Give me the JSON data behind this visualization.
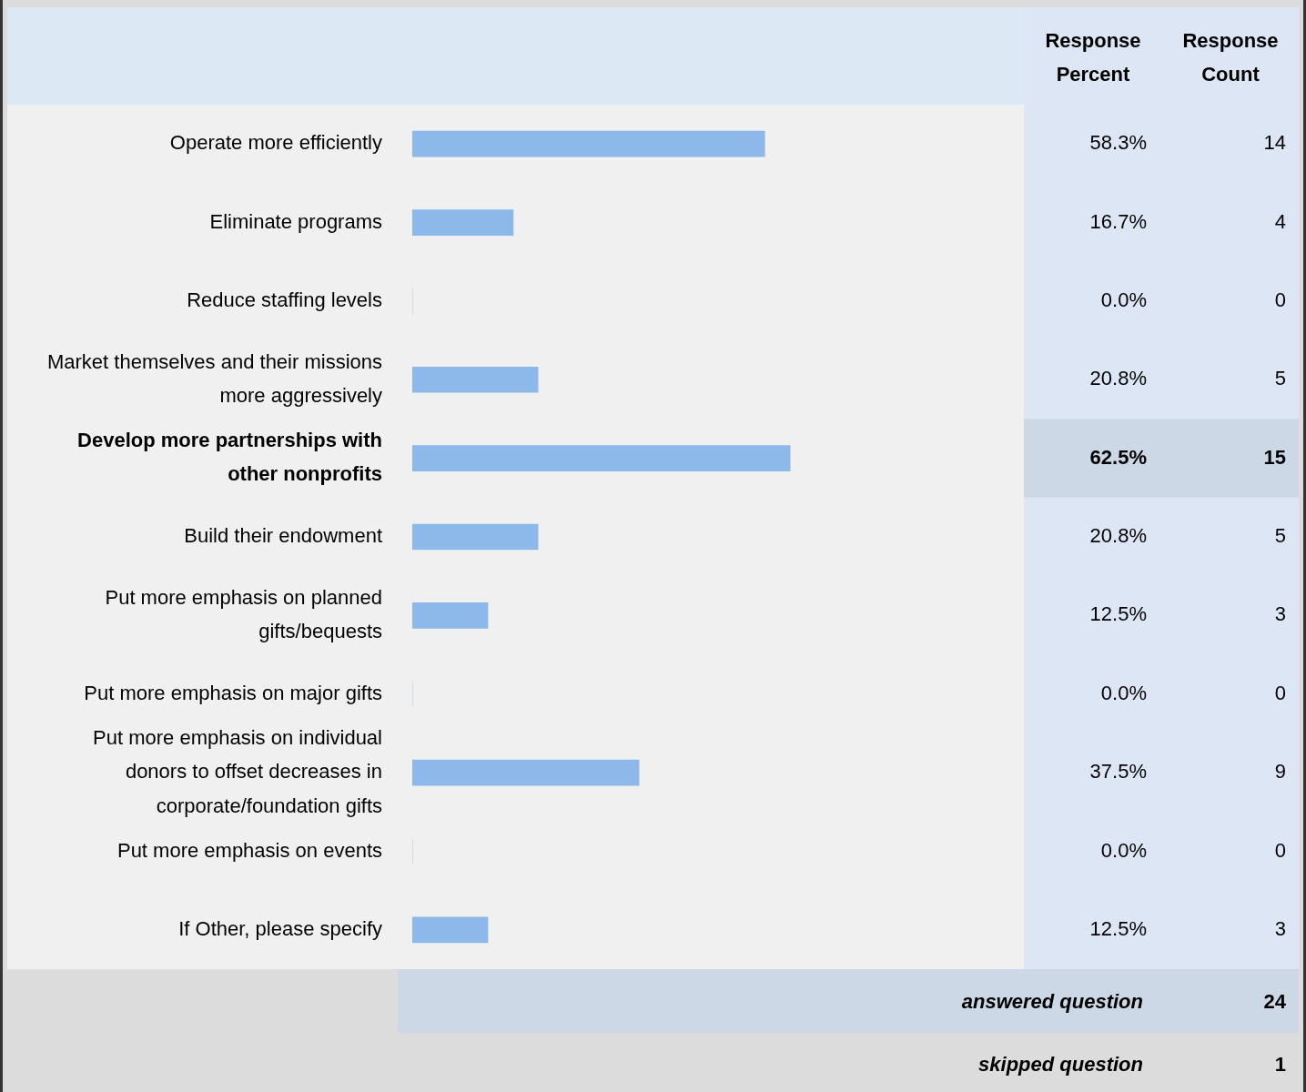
{
  "chart_data": {
    "type": "bar",
    "orientation": "horizontal",
    "categories": [
      "Operate more efficiently",
      "Eliminate programs",
      "Reduce staffing levels",
      "Market themselves and their missions more aggressively",
      "Develop more partnerships with other nonprofits",
      "Build their endowment",
      "Put more emphasis on planned gifts/bequests",
      "Put more emphasis on major gifts",
      "Put more emphasis on individual donors to offset decreases in corporate/foundation gifts",
      "Put more emphasis on events",
      "If Other, please specify"
    ],
    "values": [
      58.3,
      16.7,
      0,
      20.8,
      62.5,
      20.8,
      12.5,
      0,
      37.5,
      0,
      12.5
    ],
    "value_labels": [
      "58.3%",
      "16.7%",
      "0.0%",
      "20.8%",
      "62.5%",
      "20.8%",
      "12.5%",
      "0.0%",
      "37.5%",
      "0.0%",
      "12.5%"
    ],
    "color": "#8db9ea",
    "tick_labels": "y",
    "grid": false,
    "legend": false,
    "annotations": [
      "Response Percent",
      "Response Count",
      "14",
      "4",
      "0",
      "5",
      "15",
      "5",
      "3",
      "0",
      "9",
      "0",
      "3",
      "answered question",
      "24",
      "skipped question",
      "1"
    ]
  }
}
